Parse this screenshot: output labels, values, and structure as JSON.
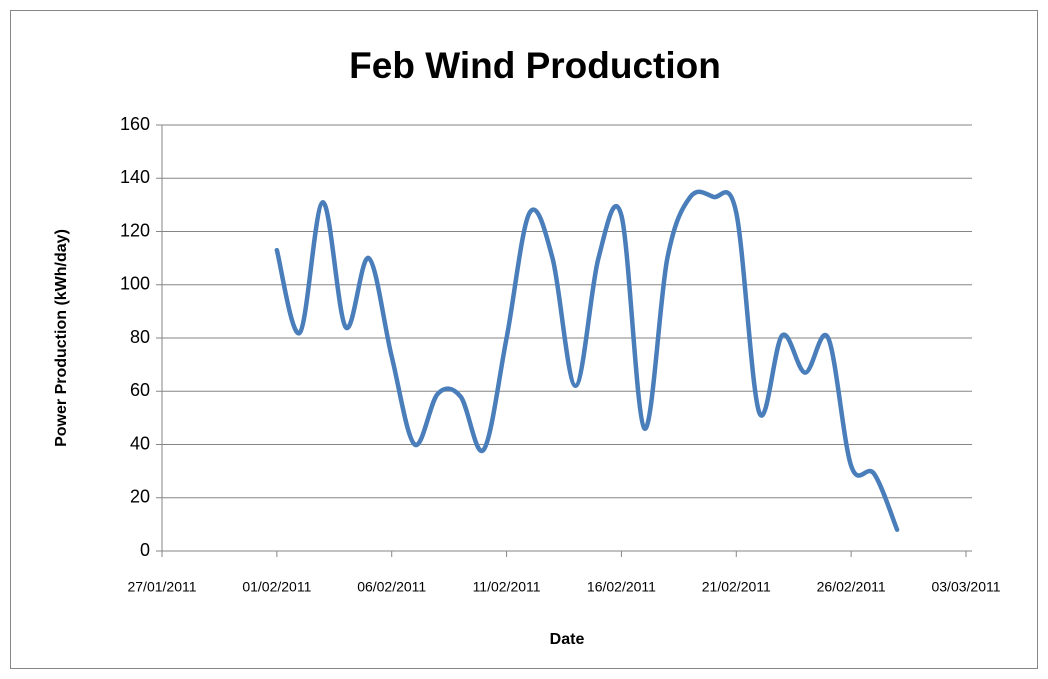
{
  "chart_data": {
    "type": "line",
    "title": "Feb Wind Production",
    "xlabel": "Date",
    "ylabel": "Power Production (kWh/day)",
    "x": [
      "01/02/2011",
      "02/02/2011",
      "03/02/2011",
      "04/02/2011",
      "05/02/2011",
      "06/02/2011",
      "07/02/2011",
      "08/02/2011",
      "09/02/2011",
      "10/02/2011",
      "11/02/2011",
      "12/02/2011",
      "13/02/2011",
      "14/02/2011",
      "15/02/2011",
      "16/02/2011",
      "17/02/2011",
      "18/02/2011",
      "19/02/2011",
      "20/02/2011",
      "21/02/2011",
      "22/02/2011",
      "23/02/2011",
      "24/02/2011",
      "25/02/2011",
      "26/02/2011",
      "27/02/2011",
      "28/02/2011"
    ],
    "series": [
      {
        "name": "Power Production",
        "color": "#4a7ebb",
        "values": [
          113,
          82,
          131,
          84,
          110,
          73,
          40,
          59,
          58,
          38,
          80,
          127,
          110,
          62,
          110,
          126,
          46,
          110,
          133,
          133,
          127,
          52,
          81,
          67,
          80,
          32,
          29,
          8
        ]
      }
    ],
    "xlim": [
      "27/01/2011",
      "03/03/2011"
    ],
    "xticks": [
      "27/01/2011",
      "01/02/2011",
      "06/02/2011",
      "11/02/2011",
      "16/02/2011",
      "21/02/2011",
      "26/02/2011",
      "03/03/2011"
    ],
    "ylim": [
      0,
      160
    ],
    "yticks": [
      0,
      20,
      40,
      60,
      80,
      100,
      120,
      140,
      160
    ],
    "grid": true
  }
}
